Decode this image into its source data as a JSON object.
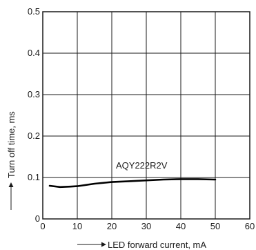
{
  "chart_data": {
    "type": "line",
    "title": "",
    "xlabel": "LED forward current, mA",
    "ylabel": "Turn off time, ms",
    "xlim": [
      0,
      60
    ],
    "ylim": [
      0,
      0.5
    ],
    "x_ticks": [
      "0",
      "10",
      "20",
      "30",
      "40",
      "50",
      "60"
    ],
    "y_ticks": [
      "0",
      "0.1",
      "0.2",
      "0.3",
      "0.4",
      "0.5"
    ],
    "grid": true,
    "series": [
      {
        "name": "AQY222R2V",
        "color": "#000000",
        "x": [
          2,
          5,
          8,
          10,
          15,
          20,
          25,
          30,
          35,
          40,
          45,
          50
        ],
        "y": [
          0.08,
          0.077,
          0.078,
          0.079,
          0.085,
          0.089,
          0.091,
          0.093,
          0.095,
          0.096,
          0.096,
          0.095
        ]
      }
    ]
  }
}
